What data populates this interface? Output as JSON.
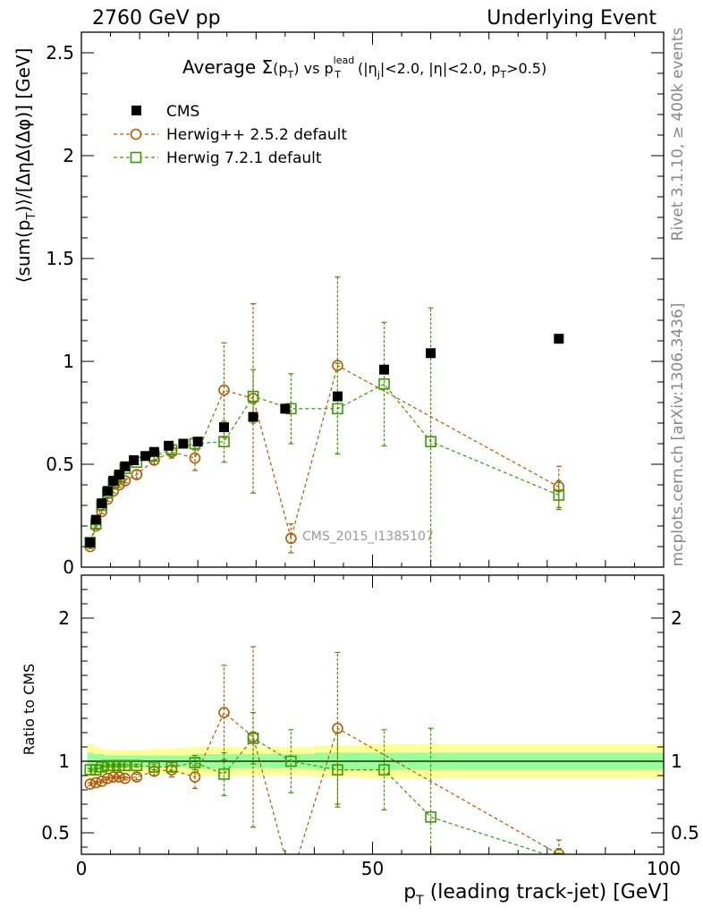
{
  "header": {
    "left": "2760 GeV pp",
    "right": "Underlying Event"
  },
  "side_labels": {
    "rivet": "Rivet 3.1.10, ≥ 400k events",
    "mcplots": "mcplots.cern.ch [arXiv:1306.3436]"
  },
  "analysis_tag": "CMS_2015_I1385107",
  "colors": {
    "cms": "#000000",
    "herwigpp": "#b35900",
    "herwig7": "#3a9a00",
    "band_inner": "#99ff99",
    "band_outer": "#ffff99"
  },
  "chart_data": [
    {
      "type": "scatter",
      "panel": "main",
      "title": {
        "prefix": "Average ",
        "sigma": "Σ",
        "sigma_arg": "(p",
        "sigma_sub": "T",
        "sigma_close": ")",
        "vs": " vs p",
        "vs_sup": "lead",
        "vs_sub": "T",
        "cuts": " (|η",
        "cuts_sub": "j",
        "cuts2": "|<2.0, |η|<2.0, p",
        "cuts_sub2": "T",
        "cuts3": ">0.5)"
      },
      "ylabel": "⟨sum(p_T)⟩/[ΔηΔ(Δφ)] [GeV]",
      "ylabel_parts": {
        "a": "⟨sum(p",
        "sub": "T",
        "b": ")⟩/[ΔηΔ(Δφ)] [GeV]"
      },
      "xlim": [
        0,
        100
      ],
      "ylim": [
        0,
        2.6
      ],
      "y_ticks": [
        0,
        0.5,
        1,
        1.5,
        2,
        2.5
      ],
      "y_tick_labels": [
        "0",
        "0.5",
        "1",
        "1.5",
        "2",
        "2.5"
      ],
      "legend": {
        "position": "top-left",
        "entries": [
          "CMS",
          "Herwig++ 2.5.2 default",
          "Herwig 7.2.1 default"
        ]
      },
      "series": [
        {
          "name": "CMS",
          "marker": "filled-square",
          "x": [
            1.5,
            2.5,
            3.5,
            4.5,
            5.5,
            6.5,
            7.5,
            9.0,
            11.0,
            12.5,
            15.0,
            17.5,
            20.0,
            24.5,
            29.5,
            35.0,
            44.0,
            52.0,
            60.0,
            82.0
          ],
          "y": [
            0.12,
            0.23,
            0.31,
            0.37,
            0.42,
            0.45,
            0.49,
            0.52,
            0.54,
            0.56,
            0.59,
            0.6,
            0.61,
            0.68,
            0.73,
            0.77,
            0.83,
            0.96,
            1.04,
            1.11
          ]
        },
        {
          "name": "Herwig++ 2.5.2 default",
          "marker": "open-circle",
          "x": [
            1.5,
            2.5,
            3.5,
            4.5,
            5.5,
            6.5,
            7.5,
            9.5,
            12.5,
            15.5,
            19.5,
            24.5,
            29.5,
            36.0,
            44.0,
            82.0
          ],
          "y": [
            0.1,
            0.2,
            0.27,
            0.33,
            0.37,
            0.4,
            0.42,
            0.45,
            0.52,
            0.56,
            0.53,
            0.86,
            0.82,
            0.14,
            0.98,
            0.39
          ],
          "err": [
            0.01,
            0.01,
            0.01,
            0.01,
            0.01,
            0.01,
            0.01,
            0.02,
            0.02,
            0.03,
            0.06,
            0.23,
            0.46,
            0.07,
            0.43,
            0.1
          ]
        },
        {
          "name": "Herwig 7.2.1 default",
          "marker": "open-square",
          "x": [
            1.5,
            2.5,
            3.5,
            4.5,
            5.5,
            6.5,
            7.5,
            9.5,
            12.5,
            15.5,
            19.5,
            24.5,
            29.5,
            36.0,
            44.0,
            52.0,
            60.0,
            82.0
          ],
          "y": [
            0.12,
            0.21,
            0.3,
            0.36,
            0.41,
            0.44,
            0.48,
            0.51,
            0.54,
            0.57,
            0.6,
            0.61,
            0.83,
            0.77,
            0.77,
            0.89,
            0.61,
            0.35
          ],
          "err": [
            0.01,
            0.01,
            0.01,
            0.01,
            0.01,
            0.01,
            0.01,
            0.01,
            0.02,
            0.02,
            0.03,
            0.1,
            0.13,
            0.17,
            0.22,
            0.3,
            0.65,
            0.07
          ]
        }
      ]
    },
    {
      "type": "line",
      "panel": "ratio",
      "ylabel": "Ratio to CMS",
      "xlabel": "p_T (leading track-jet) [GeV]",
      "xlabel_parts": {
        "a": "p",
        "sub": "T",
        "b": " (leading track-jet) [GeV]"
      },
      "xlim": [
        0,
        100
      ],
      "ylim": [
        0.35,
        2.3
      ],
      "x_ticks": [
        0,
        50,
        100
      ],
      "x_tick_labels": [
        "0",
        "50",
        "100"
      ],
      "y_ticks": [
        0.5,
        1,
        2
      ],
      "y_tick_labels": [
        "0.5",
        "1",
        "2"
      ],
      "band": {
        "x_edges": [
          1,
          2,
          3,
          4,
          5,
          6,
          7,
          8,
          10,
          12,
          14,
          17,
          19,
          22,
          27,
          32,
          40,
          48,
          56,
          64,
          100
        ],
        "inner_half_width": [
          0.06,
          0.05,
          0.05,
          0.04,
          0.04,
          0.04,
          0.04,
          0.04,
          0.04,
          0.04,
          0.04,
          0.04,
          0.05,
          0.05,
          0.05,
          0.05,
          0.06,
          0.06,
          0.06,
          0.06
        ],
        "outer_half_width": [
          0.12,
          0.1,
          0.09,
          0.08,
          0.08,
          0.08,
          0.08,
          0.08,
          0.08,
          0.09,
          0.09,
          0.09,
          0.1,
          0.1,
          0.1,
          0.1,
          0.11,
          0.12,
          0.12,
          0.12
        ]
      },
      "series": [
        {
          "name": "Herwig++ 2.5.2 default",
          "x": [
            1.5,
            2.5,
            3.5,
            4.5,
            5.5,
            6.5,
            7.5,
            9.5,
            12.5,
            15.5,
            19.5,
            24.5,
            29.5,
            36.0,
            44.0,
            82.0
          ],
          "y": [
            0.84,
            0.85,
            0.86,
            0.88,
            0.89,
            0.89,
            0.88,
            0.89,
            0.93,
            0.94,
            0.89,
            1.34,
            1.17,
            0.18,
            1.23,
            0.35
          ],
          "err": [
            0.01,
            0.01,
            0.01,
            0.01,
            0.01,
            0.01,
            0.01,
            0.02,
            0.03,
            0.05,
            0.08,
            0.33,
            0.63,
            0.09,
            0.53,
            0.1
          ]
        },
        {
          "name": "Herwig 7.2.1 default",
          "x": [
            1.5,
            2.5,
            3.5,
            4.5,
            5.5,
            6.5,
            7.5,
            9.5,
            12.5,
            15.5,
            19.5,
            24.5,
            29.5,
            36.0,
            44.0,
            52.0,
            60.0,
            82.0
          ],
          "y": [
            0.94,
            0.94,
            0.96,
            0.97,
            0.97,
            0.97,
            0.97,
            0.97,
            0.96,
            0.96,
            0.99,
            0.91,
            1.16,
            1.0,
            0.94,
            0.94,
            0.61,
            0.32
          ],
          "err": [
            0.01,
            0.01,
            0.01,
            0.01,
            0.01,
            0.01,
            0.01,
            0.01,
            0.02,
            0.03,
            0.05,
            0.15,
            0.18,
            0.22,
            0.26,
            0.28,
            0.62,
            0.07
          ]
        }
      ]
    }
  ]
}
